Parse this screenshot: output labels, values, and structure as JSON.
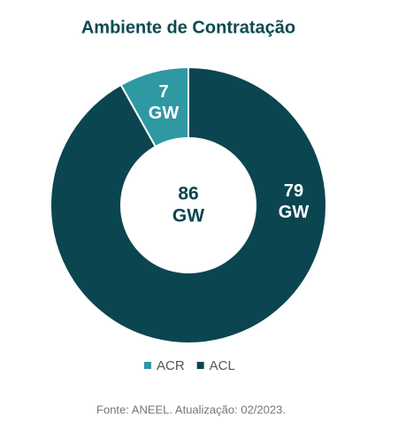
{
  "chart_data": {
    "type": "donut",
    "title": "Ambiente de Contratação",
    "categories": [
      "ACR",
      "ACL"
    ],
    "values": [
      7,
      79
    ],
    "value_labels": [
      "7 GW",
      "79 GW"
    ],
    "colors": [
      "#2e98a3",
      "#0b4550"
    ],
    "center_label": "86 GW",
    "source": "Fonte: ANEEL. Atualização: 02/2023."
  }
}
